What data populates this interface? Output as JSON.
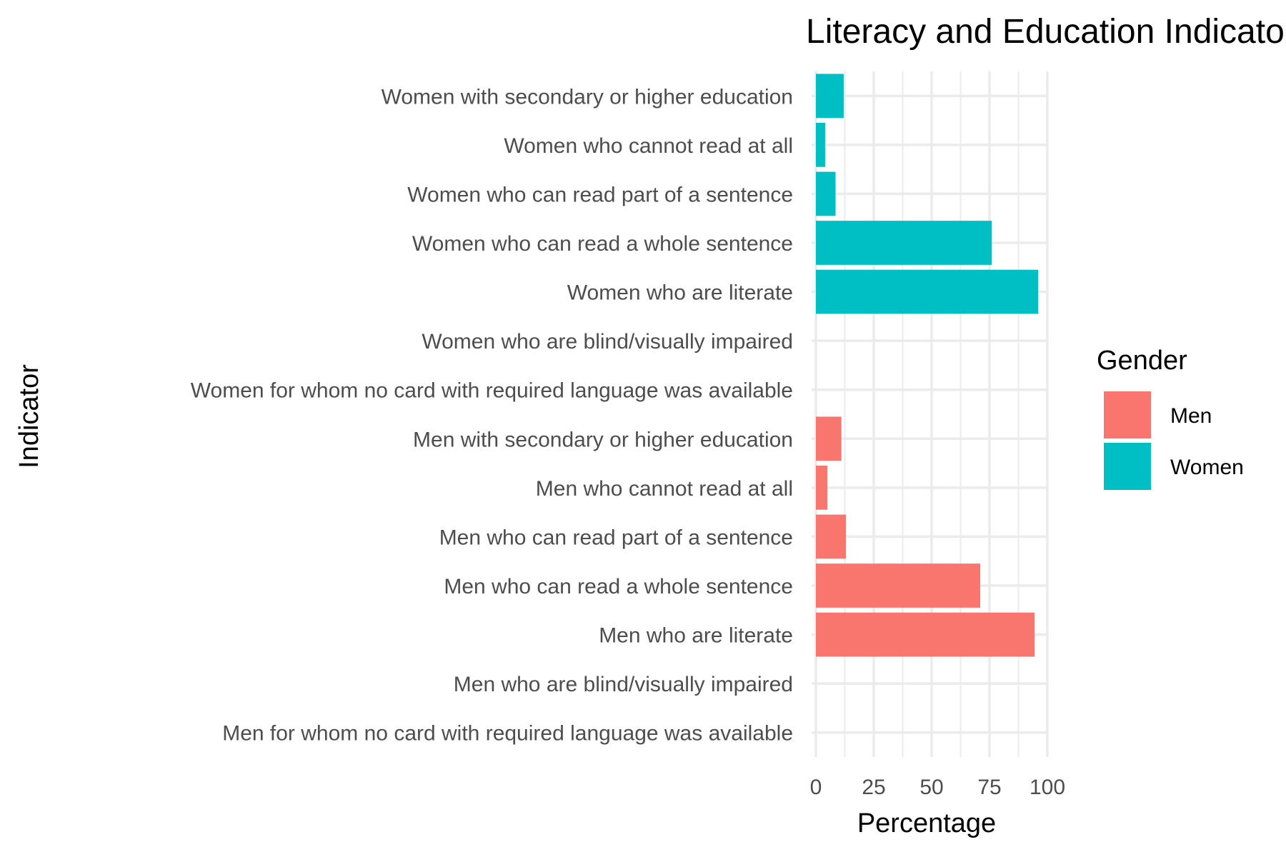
{
  "chart_data": {
    "type": "bar",
    "orientation": "horizontal",
    "title": "Literacy and Education Indicators",
    "xlabel": "Percentage",
    "ylabel": "Indicator",
    "xlim": [
      0,
      100
    ],
    "x_ticks": [
      0,
      25,
      50,
      75,
      100
    ],
    "grid": true,
    "legend": {
      "title": "Gender",
      "placement": "right",
      "entries": [
        {
          "name": "Men",
          "color": "#F8766D"
        },
        {
          "name": "Women",
          "color": "#00BFC4"
        }
      ]
    },
    "bars": [
      {
        "category": "Women with secondary or higher education",
        "value": 12,
        "group": "Women"
      },
      {
        "category": "Women who cannot read at all",
        "value": 4,
        "group": "Women"
      },
      {
        "category": "Women who can read part of a sentence",
        "value": 8.5,
        "group": "Women"
      },
      {
        "category": "Women who can read a whole sentence",
        "value": 76,
        "group": "Women"
      },
      {
        "category": "Women who are literate",
        "value": 96,
        "group": "Women"
      },
      {
        "category": "Women who are blind/visually impaired",
        "value": 0,
        "group": "Women"
      },
      {
        "category": "Women for whom no card with required language was available",
        "value": 0,
        "group": "Women"
      },
      {
        "category": "Men with secondary or higher education",
        "value": 11,
        "group": "Men"
      },
      {
        "category": "Men who cannot read at all",
        "value": 5,
        "group": "Men"
      },
      {
        "category": "Men who can read part of a sentence",
        "value": 13,
        "group": "Men"
      },
      {
        "category": "Men who can read a whole sentence",
        "value": 71,
        "group": "Men"
      },
      {
        "category": "Men who are literate",
        "value": 94.5,
        "group": "Men"
      },
      {
        "category": "Men who are blind/visually impaired",
        "value": 0,
        "group": "Men"
      },
      {
        "category": "Men for whom no card with required language was available",
        "value": 0,
        "group": "Men"
      }
    ]
  }
}
